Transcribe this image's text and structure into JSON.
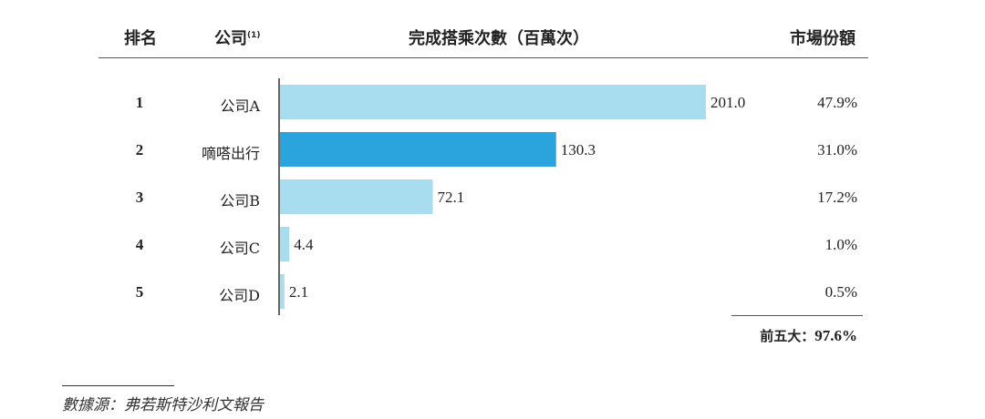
{
  "header": {
    "rank": "排名",
    "company": "公司",
    "company_note": "(1)",
    "rides": "完成搭乘次數（百萬次）",
    "share": "市場份額"
  },
  "colors": {
    "bar": "#a8dcef",
    "highlight": "#2ba3dc",
    "axis": "#333333"
  },
  "chart_data": {
    "type": "bar",
    "orientation": "horizontal",
    "categories": [
      "公司A",
      "嘀嗒出行",
      "公司B",
      "公司C",
      "公司D"
    ],
    "ranks": [
      "1",
      "2",
      "3",
      "4",
      "5"
    ],
    "values": [
      201.0,
      130.3,
      72.1,
      4.4,
      2.1
    ],
    "value_labels": [
      "201.0",
      "130.3",
      "72.1",
      "4.4",
      "2.1"
    ],
    "shares": [
      "47.9%",
      "31.0%",
      "17.2%",
      "1.0%",
      "0.5%"
    ],
    "highlight_index": 1,
    "xlim": [
      0,
      201.0
    ]
  },
  "total": {
    "label": "前五大：",
    "value": "97.6%"
  },
  "source": "數據源：弗若斯特沙利文報告"
}
